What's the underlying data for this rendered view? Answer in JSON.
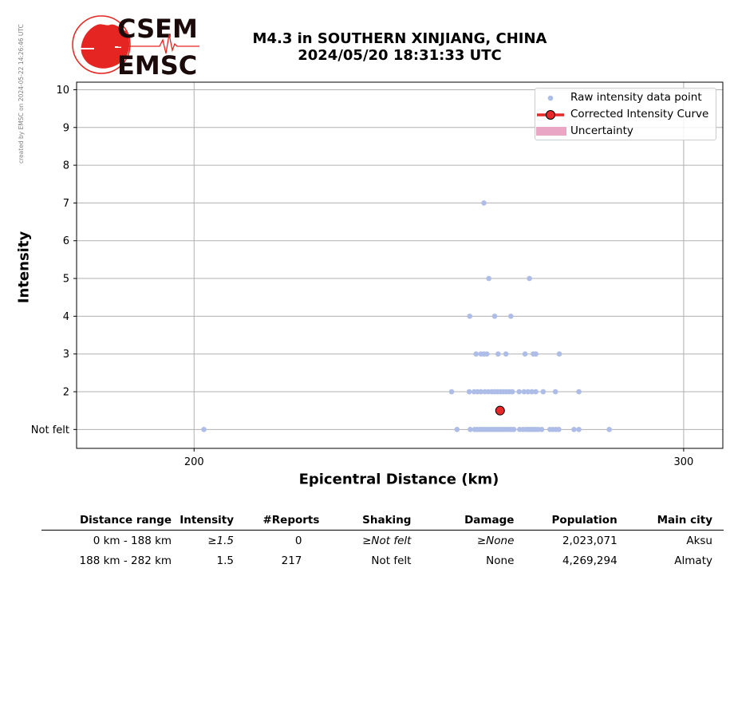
{
  "credit": "created by EMSC on 2024-05-22 14:26:46 UTC",
  "logo": {
    "top_text": "CSEM",
    "bottom_text": "EMSC"
  },
  "title": {
    "line1": "M4.3 in SOUTHERN XINJIANG, CHINA",
    "line2": "2024/05/20 18:31:33 UTC"
  },
  "legend": {
    "raw": "Raw intensity data point",
    "curve": "Corrected Intensity Curve",
    "uncertainty": "Uncertainty"
  },
  "colors": {
    "raw_points": "#aebde8",
    "curve": "#e8292a",
    "uncertainty": "#eaa7c5",
    "grid": "#b0b0b0",
    "logo_red": "#e52521"
  },
  "chart_data": {
    "type": "scatter",
    "xlabel": "Epicentral Distance (km)",
    "ylabel": "Intensity",
    "xlim": [
      176,
      308
    ],
    "ylim": [
      0.5,
      10.2
    ],
    "xticks": [
      200,
      300
    ],
    "yticks": [
      {
        "value": 1,
        "label": "Not felt"
      },
      {
        "value": 2,
        "label": "2"
      },
      {
        "value": 3,
        "label": "3"
      },
      {
        "value": 4,
        "label": "4"
      },
      {
        "value": 5,
        "label": "5"
      },
      {
        "value": 6,
        "label": "6"
      },
      {
        "value": 7,
        "label": "7"
      },
      {
        "value": 8,
        "label": "8"
      },
      {
        "value": 9,
        "label": "9"
      },
      {
        "value": 10,
        "label": "10"
      }
    ],
    "grid": true,
    "legend_position": "top-right",
    "raw_points": [
      [
        202,
        1
      ],
      [
        253.7,
        1
      ],
      [
        256.4,
        1
      ],
      [
        257.3,
        1
      ],
      [
        257.8,
        1
      ],
      [
        258.3,
        1
      ],
      [
        258.8,
        1
      ],
      [
        259.3,
        1
      ],
      [
        259.8,
        1
      ],
      [
        260.3,
        1
      ],
      [
        260.8,
        1
      ],
      [
        261.3,
        1
      ],
      [
        261.8,
        1
      ],
      [
        262.3,
        1
      ],
      [
        262.8,
        1
      ],
      [
        263.3,
        1
      ],
      [
        263.8,
        1
      ],
      [
        264.3,
        1
      ],
      [
        264.8,
        1
      ],
      [
        265.3,
        1
      ],
      [
        266.5,
        1
      ],
      [
        267.2,
        1
      ],
      [
        267.8,
        1
      ],
      [
        268.3,
        1
      ],
      [
        268.8,
        1
      ],
      [
        269.3,
        1
      ],
      [
        269.8,
        1
      ],
      [
        270.3,
        1
      ],
      [
        271,
        1
      ],
      [
        272.7,
        1
      ],
      [
        273.3,
        1
      ],
      [
        273.9,
        1
      ],
      [
        274.5,
        1
      ],
      [
        277.6,
        1
      ],
      [
        278.6,
        1
      ],
      [
        284.8,
        1
      ],
      [
        252.6,
        2
      ],
      [
        256.2,
        2
      ],
      [
        257.2,
        2
      ],
      [
        257.9,
        2
      ],
      [
        258.6,
        2
      ],
      [
        259.4,
        2
      ],
      [
        260.1,
        2
      ],
      [
        260.8,
        2
      ],
      [
        261.4,
        2
      ],
      [
        262,
        2
      ],
      [
        262.6,
        2
      ],
      [
        263.2,
        2
      ],
      [
        263.8,
        2
      ],
      [
        264.4,
        2
      ],
      [
        265,
        2
      ],
      [
        266.4,
        2
      ],
      [
        267.4,
        2
      ],
      [
        268.2,
        2
      ],
      [
        269,
        2
      ],
      [
        269.8,
        2
      ],
      [
        271.3,
        2
      ],
      [
        273.8,
        2
      ],
      [
        278.6,
        2
      ],
      [
        257.6,
        3
      ],
      [
        258.6,
        3
      ],
      [
        259.2,
        3
      ],
      [
        259.8,
        3
      ],
      [
        262.1,
        3
      ],
      [
        263.7,
        3
      ],
      [
        267.6,
        3
      ],
      [
        269.3,
        3
      ],
      [
        269.8,
        3
      ],
      [
        274.6,
        3
      ],
      [
        256.3,
        4
      ],
      [
        261.4,
        4
      ],
      [
        264.7,
        4
      ],
      [
        260.2,
        5
      ],
      [
        268.5,
        5
      ],
      [
        259.2,
        7
      ]
    ],
    "corrected_curve": [
      [
        262.5,
        1.5
      ]
    ]
  },
  "table": {
    "headers": [
      "Distance range",
      "Intensity",
      "#Reports",
      "Shaking",
      "Damage",
      "Population",
      "Main city"
    ],
    "rows": [
      {
        "range": "0 km -  188 km",
        "intensity": "≥1.5",
        "reports": "0",
        "shaking": "≥Not felt",
        "damage": "≥None",
        "population": "2,023,071",
        "city": "Aksu"
      },
      {
        "range": "188 km -  282 km",
        "intensity": "1.5",
        "reports": "217",
        "shaking": "Not felt",
        "damage": "None",
        "population": "4,269,294",
        "city": "Almaty"
      }
    ]
  }
}
